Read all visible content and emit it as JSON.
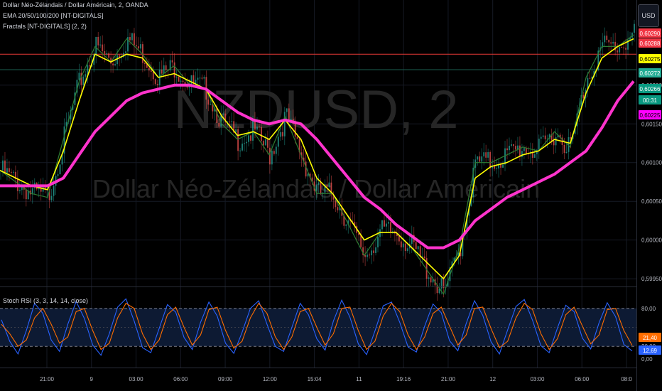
{
  "header": {
    "title": "Dollar Néo-Zélandais / Dollar Américain, 2, OANDA",
    "indicator_ema": "EMA 20/50/100/200 [NT-DIGITALS]",
    "indicator_fractals": "Fractals [NT-DIGITALS] (2, 2)",
    "osc_title": "Stoch RSI (3, 3, 14, 14, close)",
    "currency_button": "USD"
  },
  "watermark": {
    "symbol": "NZDUSD, 2",
    "name": "Dollar Néo-Zélandais / Dollar Américain"
  },
  "colors": {
    "ema20": "#2e7d32",
    "ema50": "#ffff00",
    "ema200": "#ff33cc",
    "resistance": "#e53935",
    "stoch_k": "#2962ff",
    "stoch_d": "#ff6d00",
    "candle_up": "#26a69a",
    "candle_down": "#ef5350"
  },
  "price_labels": [
    {
      "text": "0,60290",
      "bg": "#f23645",
      "fg": "#ffffff"
    },
    {
      "text": "0,60288",
      "bg": "#f23645",
      "fg": "#ffffff"
    },
    {
      "text": "0,60275",
      "bg": "#ffff00",
      "fg": "#000000"
    },
    {
      "text": "0,60272",
      "bg": "#22ab94",
      "fg": "#ffffff"
    },
    {
      "text": "0,60266",
      "bg": "#089981",
      "fg": "#ffffff"
    },
    {
      "text": "00:31",
      "bg": "#089981",
      "fg": "#ffffff"
    },
    {
      "text": "0,60225",
      "bg": "#ff00ff",
      "fg": "#000000"
    }
  ],
  "osc_labels": [
    {
      "text": "21,40",
      "bg": "#ff6d00",
      "fg": "#ffffff"
    },
    {
      "text": "12,69",
      "bg": "#2962ff",
      "fg": "#ffffff"
    }
  ],
  "chart_data": [
    {
      "type": "line",
      "title": "Dollar Néo-Zélandais / Dollar Américain, 2, OANDA",
      "x_ticks": [
        "21:00",
        "9",
        "03:00",
        "06:00",
        "09:00",
        "12:00",
        "15:04",
        "11",
        "19:16",
        "21:00",
        "12",
        "03:00",
        "06:00",
        "08:0"
      ],
      "y_ticks": [
        "0,60200",
        "0,60150",
        "0,60100",
        "0,60050",
        "0,60000",
        "0,59950"
      ],
      "ylim": [
        0.5994,
        0.6031
      ],
      "resistance": 0.6024,
      "support": 0.6022,
      "x": [
        0,
        5,
        10,
        15,
        20,
        25,
        30,
        35,
        40,
        45,
        50,
        55,
        60,
        65,
        70,
        75,
        80,
        85,
        90,
        95,
        100,
        105,
        110,
        115,
        120,
        125,
        130,
        135,
        140,
        145,
        150,
        155,
        160,
        165,
        170,
        175,
        180,
        185,
        190,
        195,
        200
      ],
      "series": [
        {
          "values": [
            0.6009,
            0.60075,
            0.6006,
            0.60055,
            0.6013,
            0.60205,
            0.6025,
            0.6023,
            0.6026,
            0.6024,
            0.6021,
            0.60225,
            0.602,
            0.60195,
            0.6015,
            0.6013,
            0.6014,
            0.6011,
            0.6016,
            0.6011,
            0.6006,
            0.6006,
            0.6002,
            0.5998,
            0.6001,
            0.6001,
            0.5999,
            0.5996,
            0.5993,
            0.5999,
            0.601,
            0.601,
            0.6011,
            0.6012,
            0.60115,
            0.6014,
            0.6012,
            0.6021,
            0.6025,
            0.6025,
            0.60265
          ]
        },
        {
          "values": [
            0.6009,
            0.6008,
            0.6007,
            0.60065,
            0.60115,
            0.6018,
            0.6024,
            0.6023,
            0.6024,
            0.60235,
            0.6021,
            0.60215,
            0.60205,
            0.60195,
            0.6016,
            0.60135,
            0.6014,
            0.6013,
            0.60155,
            0.6013,
            0.6008,
            0.6006,
            0.6003,
            0.6,
            0.6001,
            0.6001,
            0.5999,
            0.5997,
            0.5995,
            0.5998,
            0.6008,
            0.60095,
            0.601,
            0.6011,
            0.60115,
            0.6013,
            0.60125,
            0.6019,
            0.60235,
            0.6025,
            0.6026
          ]
        },
        {
          "values": [
            0.6007,
            0.6007,
            0.6007,
            0.6007,
            0.6008,
            0.6011,
            0.6014,
            0.6016,
            0.6018,
            0.6019,
            0.60195,
            0.602,
            0.602,
            0.60195,
            0.6018,
            0.60165,
            0.60155,
            0.6015,
            0.60155,
            0.6015,
            0.6013,
            0.60105,
            0.6008,
            0.60055,
            0.6004,
            0.6002,
            0.60005,
            0.5999,
            0.5999,
            0.6,
            0.60025,
            0.6004,
            0.60055,
            0.60065,
            0.60075,
            0.60085,
            0.601,
            0.60115,
            0.60145,
            0.6018,
            0.60205
          ]
        }
      ]
    },
    {
      "type": "line",
      "title": "Stoch RSI (3, 3, 14, 14, close)",
      "y_ticks": [
        "80,00",
        "20,00",
        "0,00"
      ],
      "ylim": [
        0,
        100
      ],
      "bands": [
        20,
        80
      ],
      "series": [
        {
          "values": [
            62,
            28,
            8,
            45,
            88,
            72,
            30,
            12,
            55,
            91,
            64,
            22,
            6,
            40,
            82,
            95,
            60,
            18,
            10,
            48,
            86,
            74,
            34,
            15,
            58,
            90,
            68,
            25,
            9,
            42,
            80,
            92,
            55,
            20,
            12,
            50,
            88,
            70,
            32,
            14,
            60,
            93,
            66,
            24,
            7,
            44,
            84,
            90,
            58,
            19,
            11,
            52,
            87,
            73,
            29,
            13,
            56,
            92,
            69,
            27,
            8,
            46,
            83,
            94,
            61,
            21,
            10,
            49,
            85,
            75,
            33,
            16,
            57,
            89,
            67,
            23,
            12.69
          ]
        },
        {
          "values": [
            55,
            40,
            20,
            30,
            65,
            80,
            55,
            25,
            35,
            75,
            80,
            45,
            15,
            25,
            65,
            88,
            80,
            40,
            15,
            30,
            70,
            82,
            50,
            22,
            38,
            78,
            82,
            45,
            17,
            28,
            65,
            88,
            72,
            35,
            15,
            35,
            75,
            80,
            50,
            22,
            40,
            80,
            82,
            45,
            15,
            28,
            68,
            88,
            75,
            38,
            15,
            35,
            72,
            82,
            52,
            22,
            38,
            80,
            82,
            48,
            18,
            28,
            65,
            88,
            78,
            40,
            15,
            32,
            70,
            82,
            52,
            24,
            38,
            78,
            80,
            45,
            21.4
          ]
        }
      ]
    }
  ]
}
